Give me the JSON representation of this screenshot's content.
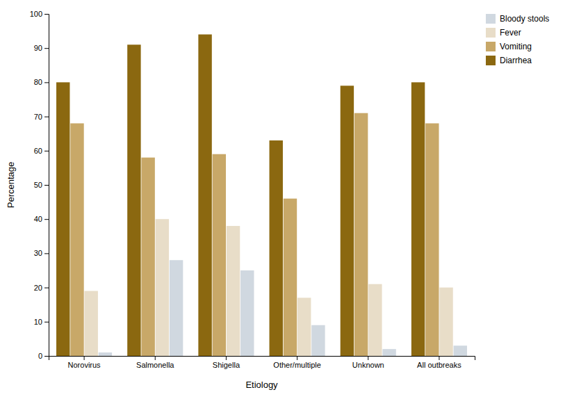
{
  "chart_data": {
    "type": "bar",
    "categories": [
      "Norovirus",
      "Salmonella",
      "Shigella",
      "Other/multiple",
      "Unknown",
      "All outbreaks"
    ],
    "series": [
      {
        "name": "Diarrhea",
        "color": "#8b6810",
        "values": [
          80,
          91,
          94,
          63,
          79,
          80
        ]
      },
      {
        "name": "Vomiting",
        "color": "#c8a868",
        "values": [
          68,
          58,
          59,
          46,
          71,
          68
        ]
      },
      {
        "name": "Fever",
        "color": "#e8ddc8",
        "values": [
          19,
          40,
          38,
          17,
          21,
          20
        ]
      },
      {
        "name": "Bloody stools",
        "color": "#d0d8e0",
        "values": [
          1,
          28,
          25,
          9,
          2,
          3
        ]
      }
    ],
    "xlabel": "Etiology",
    "ylabel": "Percentage",
    "ylim": [
      0,
      100
    ],
    "yticks": [
      0,
      10,
      20,
      30,
      40,
      50,
      60,
      70,
      80,
      90,
      100
    ],
    "grid": false,
    "legend": "upper right"
  }
}
